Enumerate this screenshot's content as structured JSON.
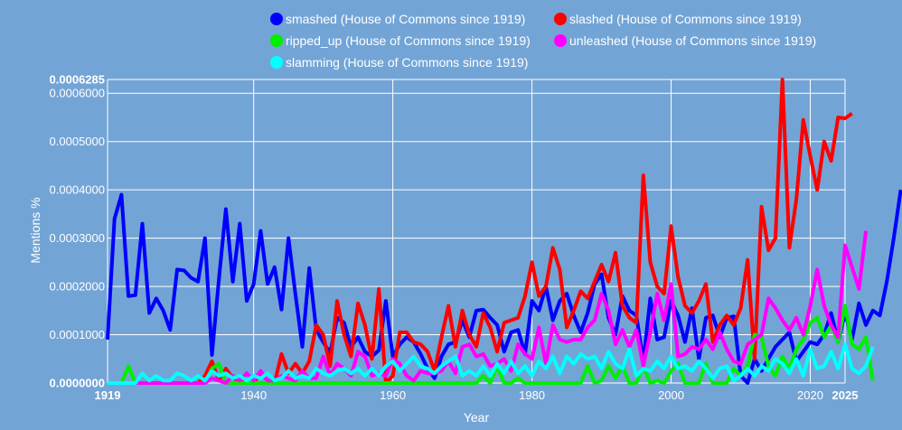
{
  "chart_data": {
    "type": "line",
    "xlabel": "Year",
    "ylabel": "Mentions %",
    "xlim": [
      1919,
      2025
    ],
    "ylim": [
      0,
      0.0006285
    ],
    "x_ticks": [
      {
        "value": 1919,
        "label": "1919",
        "bold": true
      },
      {
        "value": 1940,
        "label": "1940",
        "bold": false
      },
      {
        "value": 1960,
        "label": "1960",
        "bold": false
      },
      {
        "value": 1980,
        "label": "1980",
        "bold": false
      },
      {
        "value": 2000,
        "label": "2000",
        "bold": false
      },
      {
        "value": 2020,
        "label": "2020",
        "bold": false
      },
      {
        "value": 2025,
        "label": "2025",
        "bold": true
      }
    ],
    "y_ticks": [
      {
        "value": 0,
        "label": "0.0000000",
        "bold": true
      },
      {
        "value": 0.0001,
        "label": "0.0001000",
        "bold": false
      },
      {
        "value": 0.0002,
        "label": "0.0002000",
        "bold": false
      },
      {
        "value": 0.0003,
        "label": "0.0003000",
        "bold": false
      },
      {
        "value": 0.0004,
        "label": "0.0004000",
        "bold": false
      },
      {
        "value": 0.0005,
        "label": "0.0005000",
        "bold": false
      },
      {
        "value": 0.0006,
        "label": "0.0006000",
        "bold": false
      },
      {
        "value": 0.0006285,
        "label": "0.0006285",
        "bold": true
      }
    ],
    "grid": true,
    "legend_position": "top",
    "series": [
      {
        "name": "smashed (House of Commons since 1919)",
        "color": "#0000ff",
        "start_year": 1919,
        "values": [
          9e-05,
          0.00034,
          0.00039,
          0.00018,
          0.000182,
          0.00033,
          0.000145,
          0.000175,
          0.00015,
          0.00011,
          0.000235,
          0.000233,
          0.000218,
          0.00021,
          0.0003,
          5.8e-05,
          0.000215,
          0.00036,
          0.00021,
          0.00033,
          0.00017,
          0.000205,
          0.000315,
          0.000205,
          0.00024,
          0.000152,
          0.0003,
          0.000185,
          7.5e-05,
          0.000238,
          0.00011,
          8.5e-05,
          6.2e-05,
          0.000135,
          0.000125,
          7.5e-05,
          9.5e-05,
          6.5e-05,
          5.5e-05,
          6.8e-05,
          0.00017,
          5.5e-05,
          8e-05,
          9.5e-05,
          8.5e-05,
          6e-05,
          3e-05,
          1e-05,
          5.5e-05,
          8e-05,
          8.5e-05,
          0.00013,
          9.5e-05,
          0.00015,
          0.000152,
          0.000135,
          0.00012,
          6.5e-05,
          0.000105,
          0.00011,
          6e-05,
          0.00017,
          0.00015,
          0.0002,
          0.00013,
          0.00017,
          0.000185,
          0.00014,
          0.000105,
          0.000145,
          0.000205,
          0.000225,
          0.000135,
          0.0001,
          0.00018,
          0.00015,
          0.00014,
          4.5e-05,
          0.000175,
          9e-05,
          9.5e-05,
          0.00017,
          0.00014,
          8.5e-05,
          0.000155,
          5e-05,
          0.000135,
          0.00014,
          9.5e-05,
          0.000135,
          0.000138,
          1.5e-05,
          0.0,
          5e-05,
          2.5e-05,
          5e-05,
          7.5e-05,
          9e-05,
          0.000105,
          4.5e-05,
          6.5e-05,
          8.5e-05,
          8e-05,
          0.0001,
          0.000145,
          8.5e-05,
          0.000145,
          9e-05,
          0.000165,
          0.00012,
          0.00015,
          0.00014,
          0.00021,
          0.0003,
          0.0004
        ]
      },
      {
        "name": "slashed (House of Commons since 1919)",
        "color": "#ff0000",
        "start_year": 1919,
        "values": [
          0,
          0,
          0,
          0,
          0,
          0,
          0,
          0,
          0,
          0,
          0,
          0,
          0,
          0,
          1.5e-05,
          4.5e-05,
          5e-06,
          3e-05,
          1e-05,
          5e-06,
          0,
          0,
          2e-05,
          5e-06,
          0,
          6e-05,
          2e-05,
          4e-05,
          2e-05,
          4.5e-05,
          0.00012,
          0.0001,
          3.5e-05,
          0.00017,
          0.0001,
          5.5e-05,
          0.000165,
          0.00012,
          5e-05,
          0.000195,
          0,
          1.5e-05,
          0.000105,
          0.000105,
          8.5e-05,
          8e-05,
          6.5e-05,
          2.5e-05,
          9.5e-05,
          0.00016,
          7.5e-05,
          0.00015,
          0.0001,
          7.5e-05,
          0.000145,
          0.000115,
          6.5e-05,
          0.000125,
          0.00013,
          0.000135,
          0.00018,
          0.00025,
          0.00018,
          0.0002,
          0.00028,
          0.000235,
          0.000115,
          0.00015,
          0.00019,
          0.000175,
          0.00021,
          0.000245,
          0.00021,
          0.00027,
          0.00016,
          0.000135,
          0.000125,
          0.00043,
          0.00025,
          0.0002,
          0.000185,
          0.000325,
          0.00022,
          0.00016,
          0.000145,
          0.00017,
          0.000205,
          8.5e-05,
          0.00012,
          0.00014,
          0.00012,
          0.000155,
          0.000255,
          5e-05,
          0.000365,
          0.000275,
          0.0003,
          0.0006285,
          0.00028,
          0.00038,
          0.000545,
          0.00047,
          0.0004,
          0.0005,
          0.00046,
          0.00055,
          0.000548,
          0.000558
        ]
      },
      {
        "name": "ripped_up (House of Commons since 1919)",
        "color": "#00ee00",
        "start_year": 1919,
        "values": [
          0,
          0,
          0,
          3.5e-05,
          0,
          0,
          0,
          0,
          0,
          0,
          0,
          0,
          0,
          0,
          0,
          3e-05,
          4e-05,
          0,
          0,
          0,
          0,
          0,
          0,
          0,
          0,
          0,
          0,
          0,
          0,
          0,
          0,
          0,
          0,
          0,
          0,
          0,
          0,
          0,
          0,
          0,
          0,
          0,
          0,
          0,
          0,
          0,
          0,
          0,
          0,
          0,
          0,
          0,
          0,
          0,
          1.5e-05,
          0,
          3.5e-05,
          0,
          0,
          1e-05,
          0,
          0,
          0,
          0,
          0,
          0,
          0,
          0,
          0,
          3.5e-05,
          0,
          5e-06,
          3.5e-05,
          1e-05,
          3.5e-05,
          0,
          0,
          3.5e-05,
          0,
          5e-06,
          0,
          2.5e-05,
          4e-05,
          0,
          0,
          0,
          4e-05,
          0,
          0,
          0,
          3e-05,
          1.5e-05,
          3.5e-05,
          0.0001,
          9.5e-05,
          3.5e-05,
          1.5e-05,
          5.5e-05,
          3e-05,
          7e-05,
          9e-05,
          0.000125,
          0.000135,
          9.5e-05,
          0.00012,
          8.5e-05,
          0.00016,
          8e-05,
          7e-05,
          9.5e-05,
          5e-06
        ]
      },
      {
        "name": "unleashed (House of Commons since 1919)",
        "color": "#ff00ff",
        "start_year": 1919,
        "values": [
          0,
          0,
          0,
          0,
          0,
          0,
          0,
          0,
          0,
          0,
          0,
          0,
          0,
          0,
          0,
          1e-05,
          5e-06,
          0,
          1.5e-05,
          5e-06,
          2e-05,
          5e-06,
          2.5e-05,
          5e-06,
          5e-06,
          1.5e-05,
          1e-05,
          5e-06,
          2.5e-05,
          1e-05,
          1e-05,
          5.5e-05,
          1.5e-05,
          4e-05,
          3e-05,
          1.5e-05,
          6.5e-05,
          5.5e-05,
          1.5e-05,
          2e-05,
          1.5e-05,
          5e-05,
          4e-05,
          1.5e-05,
          5e-06,
          2.5e-05,
          2e-05,
          2e-05,
          2.5e-05,
          4.5e-05,
          2e-05,
          7.5e-05,
          8e-05,
          5.5e-05,
          6e-05,
          3.5e-05,
          4e-05,
          5e-05,
          2.5e-05,
          8e-05,
          6e-05,
          5e-05,
          0.000115,
          4e-05,
          0.00012,
          9e-05,
          8.5e-05,
          9e-05,
          9e-05,
          0.000115,
          0.00013,
          0.000185,
          0.00015,
          8e-05,
          0.00011,
          7.5e-05,
          0.00011,
          3.5e-05,
          0.000105,
          0.000185,
          0.00013,
          0.000205,
          5.5e-05,
          6e-05,
          7.5e-05,
          7e-05,
          9e-05,
          7e-05,
          0.000105,
          7e-05,
          4.5e-05,
          4e-05,
          8e-05,
          9e-05,
          0.0001,
          0.000175,
          0.000155,
          0.00013,
          0.00011,
          0.000135,
          0.0001,
          0.00016,
          0.000235,
          0.00016,
          0.00012,
          9.5e-05,
          0.000285,
          0.00024,
          0.000195,
          0.000315
        ]
      },
      {
        "name": "slamming (House of Commons since 1919)",
        "color": "#00ffff",
        "start_year": 1919,
        "values": [
          0,
          0,
          0,
          0,
          0,
          2e-05,
          5e-06,
          1.5e-05,
          5e-06,
          5e-06,
          2e-05,
          1.5e-05,
          5e-06,
          1.5e-05,
          5e-06,
          2.5e-05,
          1.5e-05,
          2e-05,
          1e-05,
          1.5e-05,
          5e-06,
          1.5e-05,
          1e-05,
          2e-05,
          5e-06,
          1e-05,
          2.5e-05,
          1e-05,
          1.5e-05,
          1e-05,
          3e-05,
          2e-05,
          1.5e-05,
          2.5e-05,
          3e-05,
          2e-05,
          3e-05,
          1.5e-05,
          3e-05,
          1.5e-05,
          3.5e-05,
          4.5e-05,
          2.5e-05,
          4e-05,
          5.5e-05,
          3.5e-05,
          3e-05,
          2e-05,
          3.5e-05,
          4.5e-05,
          5.5e-05,
          1.5e-05,
          2.5e-05,
          1.5e-05,
          3.5e-05,
          1.5e-05,
          4e-05,
          2e-05,
          4.5e-05,
          2e-05,
          3.5e-05,
          1.5e-05,
          4.5e-05,
          3e-05,
          5.5e-05,
          2e-05,
          5.5e-05,
          4e-05,
          6e-05,
          5e-05,
          5.5e-05,
          3e-05,
          6.5e-05,
          4e-05,
          3e-05,
          7e-05,
          1.5e-05,
          3e-05,
          2.5e-05,
          4.5e-05,
          3e-05,
          5.5e-05,
          3e-05,
          3.5e-05,
          2.5e-05,
          4.5e-05,
          3e-05,
          1e-05,
          3e-05,
          3.5e-05,
          5e-06,
          1.5e-05,
          3e-05,
          1.5e-05,
          3.5e-05,
          2.5e-05,
          5e-05,
          4e-05,
          2e-05,
          5e-05,
          1.5e-05,
          7e-05,
          3e-05,
          3.5e-05,
          6.5e-05,
          3e-05,
          8e-05,
          3e-05,
          2e-05,
          3.5e-05,
          7.5e-05
        ]
      }
    ]
  }
}
